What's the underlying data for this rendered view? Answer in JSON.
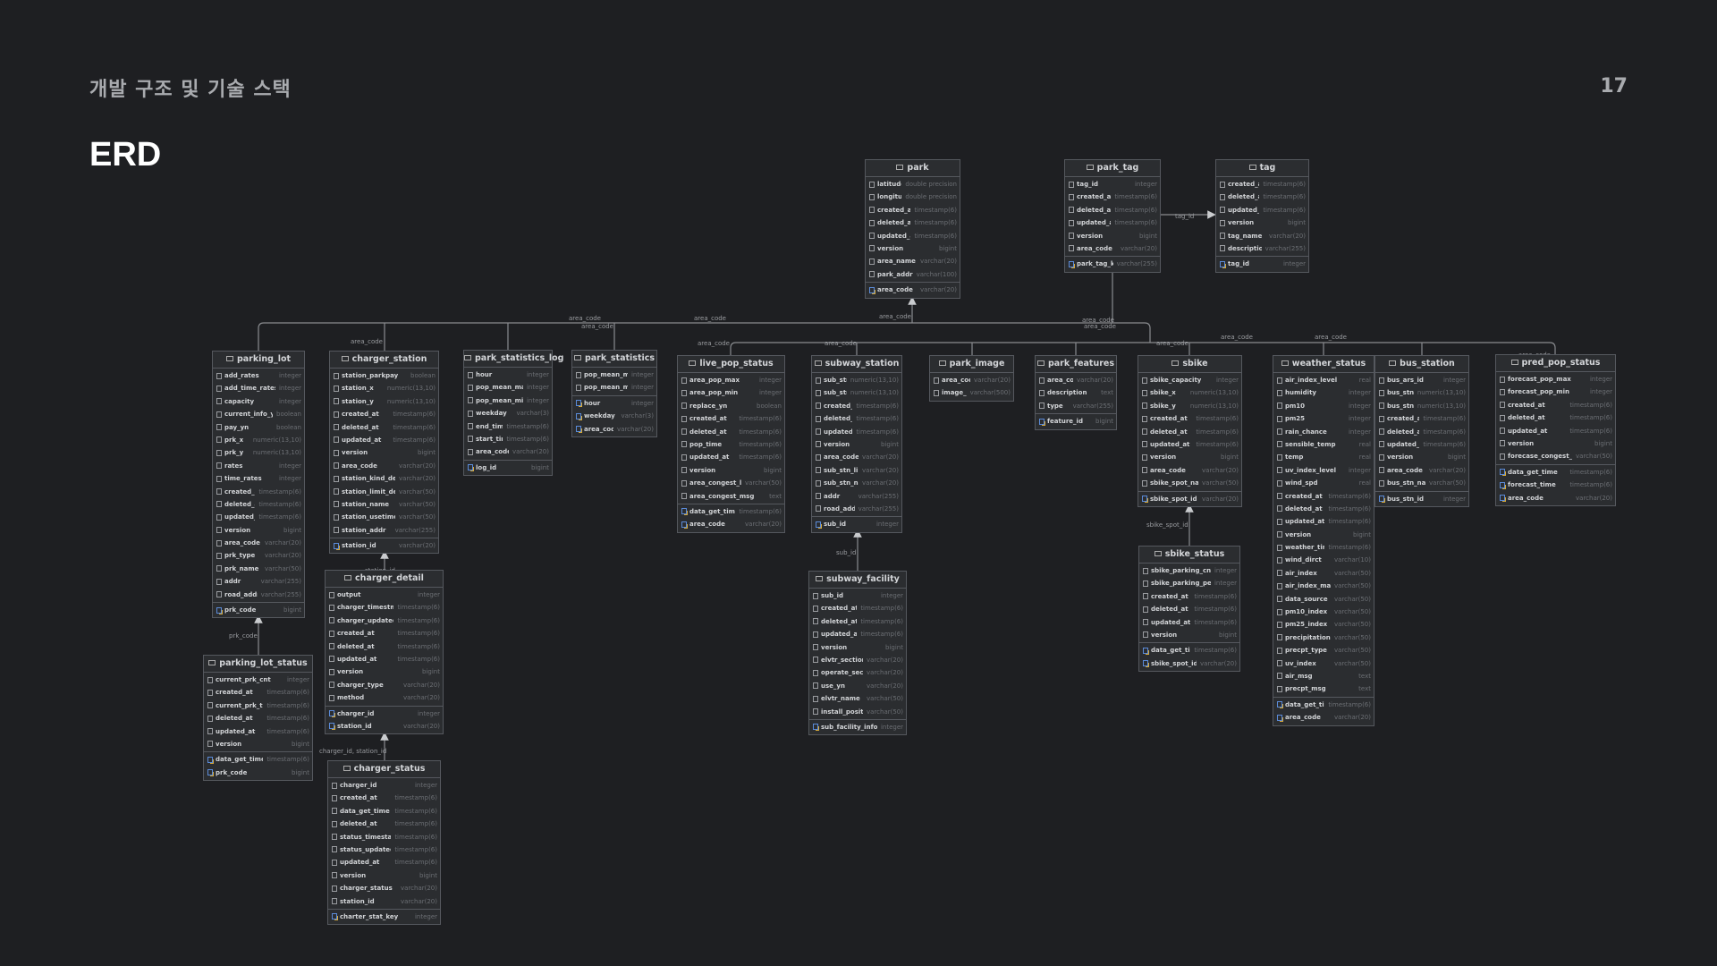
{
  "header": {
    "section": "개발 구조 및 기술 스택",
    "page_number": "17",
    "title": "ERD"
  },
  "colors": {
    "background": "#1e1f22",
    "table_bg": "#2b2d30",
    "table_border": "#55585e",
    "key_blue": "#5b8bd8",
    "key_gold": "#d6a93a"
  },
  "tables": [
    {
      "id": "park",
      "cols": [
        [
          "latitude",
          "double precision"
        ],
        [
          "longitude",
          "double precision"
        ],
        [
          "created_at",
          "timestamp(6)"
        ],
        [
          "deleted_at",
          "timestamp(6)"
        ],
        [
          "updated_at",
          "timestamp(6)"
        ],
        [
          "version",
          "bigint"
        ],
        [
          "area_name",
          "varchar(20)"
        ],
        [
          "park_addr",
          "varchar(100)"
        ]
      ],
      "keys": [
        [
          "area_code",
          "varchar(20)"
        ]
      ]
    },
    {
      "id": "park_tag",
      "cols": [
        [
          "tag_id",
          "integer"
        ],
        [
          "created_at",
          "timestamp(6)"
        ],
        [
          "deleted_at",
          "timestamp(6)"
        ],
        [
          "updated_at",
          "timestamp(6)"
        ],
        [
          "version",
          "bigint"
        ],
        [
          "area_code",
          "varchar(20)"
        ]
      ],
      "keys": [
        [
          "park_tag_key",
          "varchar(255)"
        ]
      ]
    },
    {
      "id": "tag",
      "cols": [
        [
          "created_at",
          "timestamp(6)"
        ],
        [
          "deleted_at",
          "timestamp(6)"
        ],
        [
          "updated_at",
          "timestamp(6)"
        ],
        [
          "version",
          "bigint"
        ],
        [
          "tag_name",
          "varchar(20)"
        ],
        [
          "description",
          "varchar(255)"
        ]
      ],
      "keys": [
        [
          "tag_id",
          "integer"
        ]
      ]
    },
    {
      "id": "parking_lot",
      "cols": [
        [
          "add_rates",
          "integer"
        ],
        [
          "add_time_rates",
          "integer"
        ],
        [
          "capacity",
          "integer"
        ],
        [
          "current_info_yn",
          "boolean"
        ],
        [
          "pay_yn",
          "boolean"
        ],
        [
          "prk_x",
          "numeric(13,10)"
        ],
        [
          "prk_y",
          "numeric(13,10)"
        ],
        [
          "rates",
          "integer"
        ],
        [
          "time_rates",
          "integer"
        ],
        [
          "created_at",
          "timestamp(6)"
        ],
        [
          "deleted_at",
          "timestamp(6)"
        ],
        [
          "updated_at",
          "timestamp(6)"
        ],
        [
          "version",
          "bigint"
        ],
        [
          "area_code",
          "varchar(20)"
        ],
        [
          "prk_type",
          "varchar(20)"
        ],
        [
          "prk_name",
          "varchar(50)"
        ],
        [
          "addr",
          "varchar(255)"
        ],
        [
          "road_addr",
          "varchar(255)"
        ]
      ],
      "keys": [
        [
          "prk_code",
          "bigint"
        ]
      ]
    },
    {
      "id": "charger_station",
      "cols": [
        [
          "station_parkpay",
          "boolean"
        ],
        [
          "station_x",
          "numeric(13,10)"
        ],
        [
          "station_y",
          "numeric(13,10)"
        ],
        [
          "created_at",
          "timestamp(6)"
        ],
        [
          "deleted_at",
          "timestamp(6)"
        ],
        [
          "updated_at",
          "timestamp(6)"
        ],
        [
          "version",
          "bigint"
        ],
        [
          "area_code",
          "varchar(20)"
        ],
        [
          "station_kind_detail",
          "varchar(20)"
        ],
        [
          "station_limit_detail",
          "varchar(50)"
        ],
        [
          "station_name",
          "varchar(50)"
        ],
        [
          "station_usetime",
          "varchar(50)"
        ],
        [
          "station_addr",
          "varchar(255)"
        ]
      ],
      "keys": [
        [
          "station_id",
          "varchar(20)"
        ]
      ]
    },
    {
      "id": "charger_detail",
      "cols": [
        [
          "output",
          "integer"
        ],
        [
          "charger_timestmap",
          "timestamp(6)"
        ],
        [
          "charger_updated",
          "timestamp(6)"
        ],
        [
          "created_at",
          "timestamp(6)"
        ],
        [
          "deleted_at",
          "timestamp(6)"
        ],
        [
          "updated_at",
          "timestamp(6)"
        ],
        [
          "version",
          "bigint"
        ],
        [
          "charger_type",
          "varchar(20)"
        ],
        [
          "method",
          "varchar(20)"
        ]
      ],
      "keys": [
        [
          "charger_id",
          "integer"
        ],
        [
          "station_id",
          "varchar(20)"
        ]
      ]
    },
    {
      "id": "charger_status",
      "cols": [
        [
          "charger_id",
          "integer"
        ],
        [
          "created_at",
          "timestamp(6)"
        ],
        [
          "data_get_time",
          "timestamp(6)"
        ],
        [
          "deleted_at",
          "timestamp(6)"
        ],
        [
          "status_timestamp",
          "timestamp(6)"
        ],
        [
          "status_updated",
          "timestamp(6)"
        ],
        [
          "updated_at",
          "timestamp(6)"
        ],
        [
          "version",
          "bigint"
        ],
        [
          "charger_status",
          "varchar(20)"
        ],
        [
          "station_id",
          "varchar(20)"
        ]
      ],
      "keys": [
        [
          "charter_stat_key",
          "integer"
        ]
      ]
    },
    {
      "id": "parking_lot_status",
      "cols": [
        [
          "current_prk_cnt",
          "integer"
        ],
        [
          "created_at",
          "timestamp(6)"
        ],
        [
          "current_prk_time",
          "timestamp(6)"
        ],
        [
          "deleted_at",
          "timestamp(6)"
        ],
        [
          "updated_at",
          "timestamp(6)"
        ],
        [
          "version",
          "bigint"
        ]
      ],
      "keys": [
        [
          "data_get_time",
          "timestamp(6)"
        ],
        [
          "prk_code",
          "bigint"
        ]
      ]
    },
    {
      "id": "park_statistics_log",
      "cols": [
        [
          "hour",
          "integer"
        ],
        [
          "pop_mean_max",
          "integer"
        ],
        [
          "pop_mean_min",
          "integer"
        ],
        [
          "weekday",
          "varchar(3)"
        ],
        [
          "end_time",
          "timestamp(6)"
        ],
        [
          "start_time",
          "timestamp(6)"
        ],
        [
          "area_code",
          "varchar(20)"
        ]
      ],
      "keys": [
        [
          "log_id",
          "bigint"
        ]
      ]
    },
    {
      "id": "park_statistics",
      "cols": [
        [
          "pop_mean_max",
          "integer"
        ],
        [
          "pop_mean_min",
          "integer"
        ]
      ],
      "keys": [
        [
          "hour",
          "integer"
        ],
        [
          "weekday",
          "varchar(3)"
        ],
        [
          "area_code",
          "varchar(20)"
        ]
      ]
    },
    {
      "id": "live_pop_status",
      "cols": [
        [
          "area_pop_max",
          "integer"
        ],
        [
          "area_pop_min",
          "integer"
        ],
        [
          "replace_yn",
          "boolean"
        ],
        [
          "created_at",
          "timestamp(6)"
        ],
        [
          "deleted_at",
          "timestamp(6)"
        ],
        [
          "pop_time",
          "timestamp(6)"
        ],
        [
          "updated_at",
          "timestamp(6)"
        ],
        [
          "version",
          "bigint"
        ],
        [
          "area_congest_level",
          "varchar(50)"
        ],
        [
          "area_congest_msg",
          "text"
        ]
      ],
      "keys": [
        [
          "data_get_time",
          "timestamp(6)"
        ],
        [
          "area_code",
          "varchar(20)"
        ]
      ]
    },
    {
      "id": "subway_station",
      "cols": [
        [
          "sub_stn_x",
          "numeric(13,10)"
        ],
        [
          "sub_stn_y",
          "numeric(13,10)"
        ],
        [
          "created_at",
          "timestamp(6)"
        ],
        [
          "deleted_at",
          "timestamp(6)"
        ],
        [
          "updated_at",
          "timestamp(6)"
        ],
        [
          "version",
          "bigint"
        ],
        [
          "area_code",
          "varchar(20)"
        ],
        [
          "sub_stn_line",
          "varchar(20)"
        ],
        [
          "sub_stn_name",
          "varchar(20)"
        ],
        [
          "addr",
          "varchar(255)"
        ],
        [
          "road_addr",
          "varchar(255)"
        ]
      ],
      "keys": [
        [
          "sub_id",
          "integer"
        ]
      ]
    },
    {
      "id": "subway_facility",
      "cols": [
        [
          "sub_id",
          "integer"
        ],
        [
          "created_at",
          "timestamp(6)"
        ],
        [
          "deleted_at",
          "timestamp(6)"
        ],
        [
          "updated_at",
          "timestamp(6)"
        ],
        [
          "version",
          "bigint"
        ],
        [
          "elvtr_section",
          "varchar(20)"
        ],
        [
          "operate_sector",
          "varchar(20)"
        ],
        [
          "use_yn",
          "varchar(20)"
        ],
        [
          "elvtr_name",
          "varchar(50)"
        ],
        [
          "install_position",
          "varchar(50)"
        ]
      ],
      "keys": [
        [
          "sub_facility_info",
          "integer"
        ]
      ]
    },
    {
      "id": "park_image",
      "cols": [
        [
          "area_code",
          "varchar(20)"
        ],
        [
          "image_url",
          "varchar(500)"
        ]
      ],
      "keys": []
    },
    {
      "id": "park_features",
      "cols": [
        [
          "area_code",
          "varchar(20)"
        ],
        [
          "description",
          "text"
        ],
        [
          "type",
          "varchar(255)"
        ]
      ],
      "keys": [
        [
          "feature_id",
          "bigint"
        ]
      ]
    },
    {
      "id": "sbike",
      "cols": [
        [
          "sbike_capacity",
          "integer"
        ],
        [
          "sbike_x",
          "numeric(13,10)"
        ],
        [
          "sbike_y",
          "numeric(13,10)"
        ],
        [
          "created_at",
          "timestamp(6)"
        ],
        [
          "deleted_at",
          "timestamp(6)"
        ],
        [
          "updated_at",
          "timestamp(6)"
        ],
        [
          "version",
          "bigint"
        ],
        [
          "area_code",
          "varchar(20)"
        ],
        [
          "sbike_spot_name",
          "varchar(50)"
        ]
      ],
      "keys": [
        [
          "sbike_spot_id",
          "varchar(20)"
        ]
      ]
    },
    {
      "id": "sbike_status",
      "cols": [
        [
          "sbike_parking_cnt",
          "integer"
        ],
        [
          "sbike_parking_per",
          "integer"
        ],
        [
          "created_at",
          "timestamp(6)"
        ],
        [
          "deleted_at",
          "timestamp(6)"
        ],
        [
          "updated_at",
          "timestamp(6)"
        ],
        [
          "version",
          "bigint"
        ]
      ],
      "keys": [
        [
          "data_get_time",
          "timestamp(6)"
        ],
        [
          "sbike_spot_id",
          "varchar(20)"
        ]
      ]
    },
    {
      "id": "weather_status",
      "cols": [
        [
          "air_index_level",
          "real"
        ],
        [
          "humidity",
          "integer"
        ],
        [
          "pm10",
          "integer"
        ],
        [
          "pm25",
          "integer"
        ],
        [
          "rain_chance",
          "integer"
        ],
        [
          "sensible_temp",
          "real"
        ],
        [
          "temp",
          "real"
        ],
        [
          "uv_index_level",
          "integer"
        ],
        [
          "wind_spd",
          "real"
        ],
        [
          "created_at",
          "timestamp(6)"
        ],
        [
          "deleted_at",
          "timestamp(6)"
        ],
        [
          "updated_at",
          "timestamp(6)"
        ],
        [
          "version",
          "bigint"
        ],
        [
          "weather_time",
          "timestamp(6)"
        ],
        [
          "wind_dirct",
          "varchar(10)"
        ],
        [
          "air_index",
          "varchar(50)"
        ],
        [
          "air_index_main",
          "varchar(50)"
        ],
        [
          "data_source",
          "varchar(50)"
        ],
        [
          "pm10_index",
          "varchar(50)"
        ],
        [
          "pm25_index",
          "varchar(50)"
        ],
        [
          "precipitation",
          "varchar(50)"
        ],
        [
          "precpt_type",
          "varchar(50)"
        ],
        [
          "uv_index",
          "varchar(50)"
        ],
        [
          "air_msg",
          "text"
        ],
        [
          "precpt_msg",
          "text"
        ]
      ],
      "keys": [
        [
          "data_get_time",
          "timestamp(6)"
        ],
        [
          "area_code",
          "varchar(20)"
        ]
      ]
    },
    {
      "id": "bus_station",
      "cols": [
        [
          "bus_ars_id",
          "integer"
        ],
        [
          "bus_stn_x",
          "numeric(13,10)"
        ],
        [
          "bus_stn_y",
          "numeric(13,10)"
        ],
        [
          "created_at",
          "timestamp(6)"
        ],
        [
          "deleted_at",
          "timestamp(6)"
        ],
        [
          "updated_at",
          "timestamp(6)"
        ],
        [
          "version",
          "bigint"
        ],
        [
          "area_code",
          "varchar(20)"
        ],
        [
          "bus_stn_name",
          "varchar(50)"
        ]
      ],
      "keys": [
        [
          "bus_stn_id",
          "integer"
        ]
      ]
    },
    {
      "id": "pred_pop_status",
      "cols": [
        [
          "forecast_pop_max",
          "integer"
        ],
        [
          "forecast_pop_min",
          "integer"
        ],
        [
          "created_at",
          "timestamp(6)"
        ],
        [
          "deleted_at",
          "timestamp(6)"
        ],
        [
          "updated_at",
          "timestamp(6)"
        ],
        [
          "version",
          "bigint"
        ],
        [
          "forecase_congest_level",
          "varchar(50)"
        ]
      ],
      "keys": [
        [
          "data_get_time",
          "timestamp(6)"
        ],
        [
          "forecast_time",
          "timestamp(6)"
        ],
        [
          "area_code",
          "varchar(20)"
        ]
      ]
    }
  ],
  "relations": {
    "area_code": "area_code",
    "tag_id": "tag_id",
    "sub_id": "sub_id",
    "sbike_spot_id": "sbike_spot_id",
    "prk_code": "prk_code",
    "station_id": "station_id",
    "charger_id_station_id": "charger_id, station_id"
  }
}
